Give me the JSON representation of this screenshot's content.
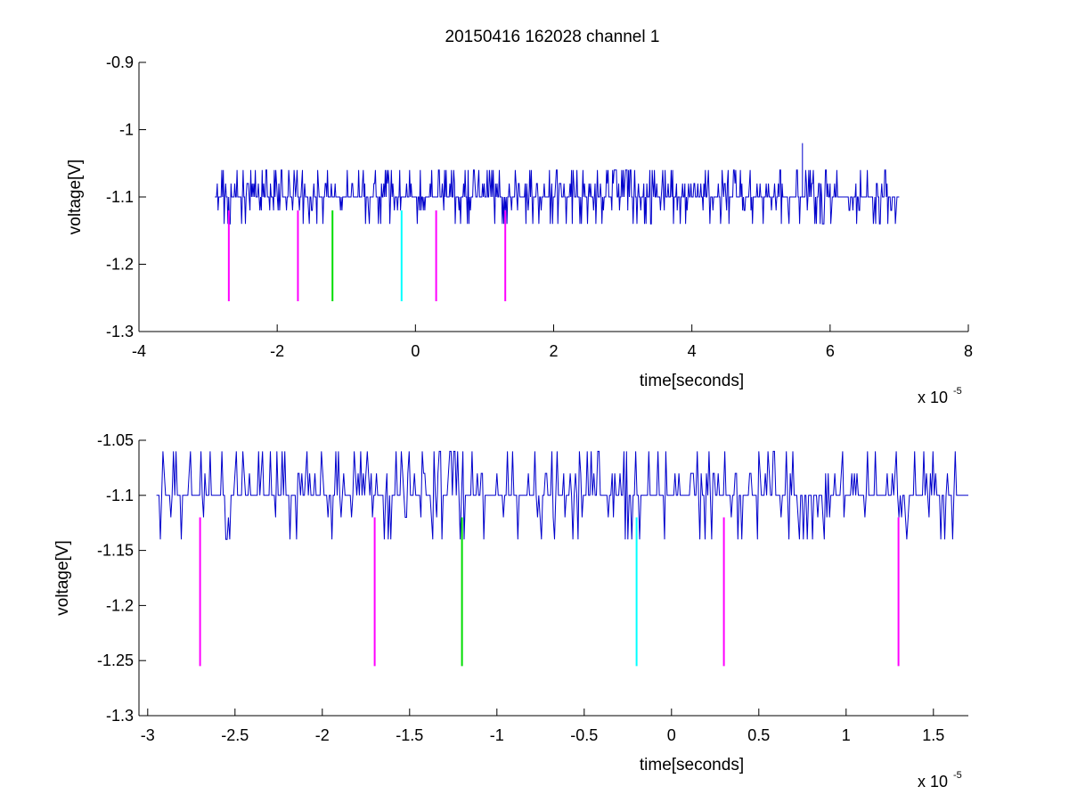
{
  "figure_title": "20150416 162028 channel 1",
  "chart_data": [
    {
      "type": "line",
      "xlabel": "time[seconds]",
      "ylabel": "voltage[V]",
      "x_multiplier": "x 10",
      "x_multiplier_exp": "-5",
      "xlim": [
        -4,
        8
      ],
      "ylim": [
        -1.3,
        -0.9
      ],
      "xticks": [
        -4,
        -2,
        0,
        2,
        4,
        6,
        8
      ],
      "xtick_labels": [
        "-4",
        "-2",
        "0",
        "2",
        "4",
        "6",
        "8"
      ],
      "yticks": [
        -1.3,
        -1.2,
        -1.1,
        -1.0,
        -0.9
      ],
      "ytick_labels": [
        "-1.3",
        "-1.2",
        "-1.1",
        "-1",
        "-0.9"
      ],
      "trace": {
        "color": "#0000cc",
        "x_range": [
          -2.9,
          7.0
        ],
        "baseline": -1.1,
        "levels": [
          -1.14,
          -1.12,
          -1.1,
          -1.08,
          -1.06
        ],
        "spike": {
          "x": 5.6,
          "y": -1.02
        }
      },
      "markers": [
        {
          "x": -2.7,
          "y_top": -1.12,
          "y_bottom": -1.255,
          "color": "#ff00ff"
        },
        {
          "x": -1.7,
          "y_top": -1.12,
          "y_bottom": -1.255,
          "color": "#ff00ff"
        },
        {
          "x": -1.2,
          "y_top": -1.12,
          "y_bottom": -1.255,
          "color": "#00dd00"
        },
        {
          "x": -0.2,
          "y_top": -1.12,
          "y_bottom": -1.255,
          "color": "#00ffff"
        },
        {
          "x": 0.3,
          "y_top": -1.12,
          "y_bottom": -1.255,
          "color": "#ff00ff"
        },
        {
          "x": 1.3,
          "y_top": -1.12,
          "y_bottom": -1.255,
          "color": "#ff00ff"
        }
      ]
    },
    {
      "type": "line",
      "xlabel": "time[seconds]",
      "ylabel": "voltage[V]",
      "x_multiplier": "x 10",
      "x_multiplier_exp": "-5",
      "xlim": [
        -3.05,
        1.7
      ],
      "ylim": [
        -1.3,
        -1.05
      ],
      "xticks": [
        -3,
        -2.5,
        -2,
        -1.5,
        -1,
        -0.5,
        0,
        0.5,
        1,
        1.5
      ],
      "xtick_labels": [
        "-3",
        "-2.5",
        "-2",
        "-1.5",
        "-1",
        "-0.5",
        "0",
        "0.5",
        "1",
        "1.5"
      ],
      "yticks": [
        -1.3,
        -1.25,
        -1.2,
        -1.15,
        -1.1,
        -1.05
      ],
      "ytick_labels": [
        "-1.3",
        "-1.25",
        "-1.2",
        "-1.15",
        "-1.1",
        "-1.05"
      ],
      "trace": {
        "color": "#0000cc",
        "x_range": [
          -2.95,
          1.7
        ],
        "baseline": -1.1,
        "levels": [
          -1.14,
          -1.12,
          -1.1,
          -1.08,
          -1.06
        ]
      },
      "markers": [
        {
          "x": -2.7,
          "y_top": -1.12,
          "y_bottom": -1.255,
          "color": "#ff00ff"
        },
        {
          "x": -1.7,
          "y_top": -1.12,
          "y_bottom": -1.255,
          "color": "#ff00ff"
        },
        {
          "x": -1.2,
          "y_top": -1.12,
          "y_bottom": -1.255,
          "color": "#00dd00"
        },
        {
          "x": -0.2,
          "y_top": -1.12,
          "y_bottom": -1.255,
          "color": "#00ffff"
        },
        {
          "x": 0.3,
          "y_top": -1.12,
          "y_bottom": -1.255,
          "color": "#ff00ff"
        },
        {
          "x": 1.3,
          "y_top": -1.12,
          "y_bottom": -1.255,
          "color": "#ff00ff"
        }
      ]
    }
  ]
}
